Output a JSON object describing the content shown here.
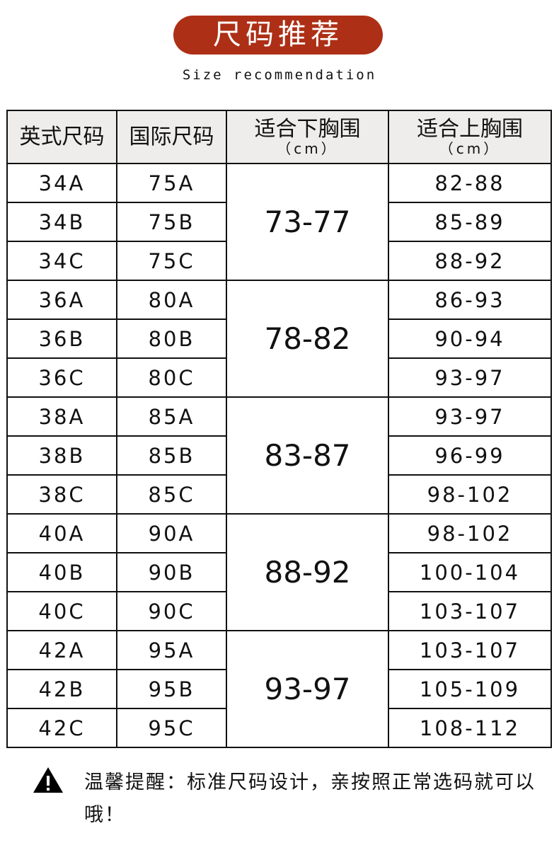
{
  "title": "尺码推荐",
  "subtitle": "Size recommendation",
  "table": {
    "headers": [
      {
        "label": "英式尺码",
        "unit": ""
      },
      {
        "label": "国际尺码",
        "unit": ""
      },
      {
        "label": "适合下胸围",
        "unit": "（cm）"
      },
      {
        "label": "适合上胸围",
        "unit": "（cm）"
      }
    ],
    "groups": [
      {
        "underbust": "73-77",
        "rows": [
          [
            "34A",
            "75A",
            "82-88"
          ],
          [
            "34B",
            "75B",
            "85-89"
          ],
          [
            "34C",
            "75C",
            "88-92"
          ]
        ]
      },
      {
        "underbust": "78-82",
        "rows": [
          [
            "36A",
            "80A",
            "86-93"
          ],
          [
            "36B",
            "80B",
            "90-94"
          ],
          [
            "36C",
            "80C",
            "93-97"
          ]
        ]
      },
      {
        "underbust": "83-87",
        "rows": [
          [
            "38A",
            "85A",
            "93-97"
          ],
          [
            "38B",
            "85B",
            "96-99"
          ],
          [
            "38C",
            "85C",
            "98-102"
          ]
        ]
      },
      {
        "underbust": "88-92",
        "rows": [
          [
            "40A",
            "90A",
            "98-102"
          ],
          [
            "40B",
            "90B",
            "100-104"
          ],
          [
            "40C",
            "90C",
            "103-107"
          ]
        ]
      },
      {
        "underbust": "93-97",
        "rows": [
          [
            "42A",
            "95A",
            "103-107"
          ],
          [
            "42B",
            "95B",
            "105-109"
          ],
          [
            "42C",
            "95C",
            "108-112"
          ]
        ]
      }
    ]
  },
  "notice": {
    "icon": "warning-icon",
    "text": "温馨提醒：标准尺码设计，亲按照正常选码就可以哦！"
  },
  "colors": {
    "accent": "#ad2f16",
    "header_bg": "#eeedeb"
  }
}
